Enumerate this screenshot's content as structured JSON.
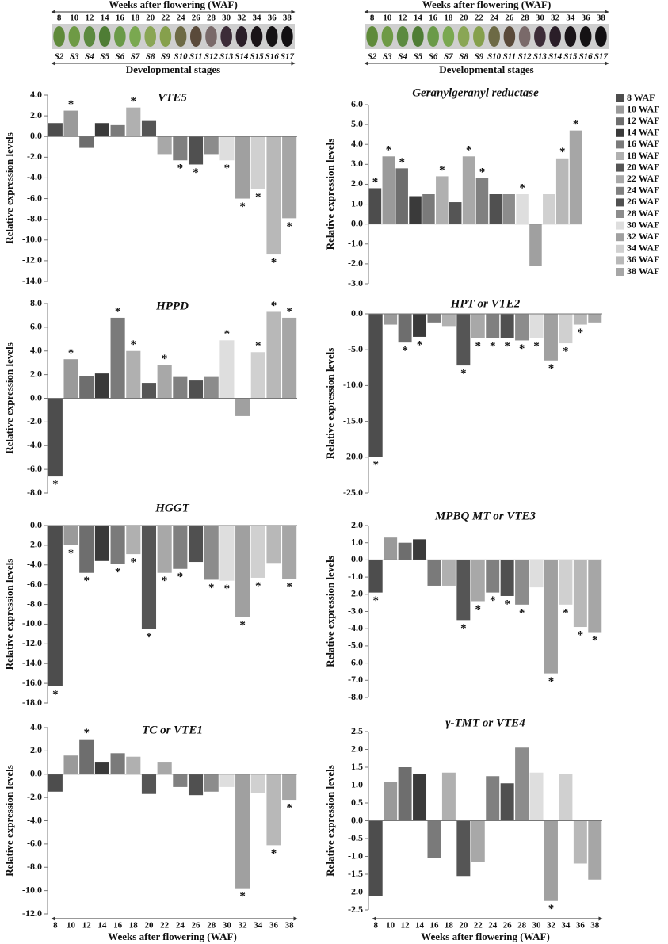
{
  "stage_strip": {
    "title": "Weeks after flowering (WAF)",
    "weeks": [
      8,
      10,
      12,
      14,
      16,
      18,
      20,
      22,
      24,
      26,
      28,
      30,
      32,
      34,
      36,
      38
    ],
    "stages": [
      "S2",
      "S3",
      "S4",
      "S5",
      "S6",
      "S7",
      "S8",
      "S9",
      "S10",
      "S11",
      "S12",
      "S13",
      "S14",
      "S15",
      "S16",
      "S17"
    ],
    "footer": "Developmental stages"
  },
  "chart_data": [
    {
      "type": "bar",
      "title": "VTE5",
      "y_label": "Relative expression levels",
      "values": [
        1.3,
        2.5,
        -1.1,
        1.3,
        1.1,
        2.8,
        1.5,
        -1.7,
        -2.3,
        -2.7,
        -1.7,
        -2.3,
        -6.0,
        -5.1,
        -11.4,
        -7.9
      ],
      "annotations": [
        null,
        "*",
        null,
        null,
        null,
        "*",
        null,
        null,
        "*",
        "*",
        null,
        "*",
        "*",
        "*",
        "*",
        "*"
      ],
      "ylim": [
        -14,
        4
      ],
      "yticks": [
        {
          "value": -14,
          "label": "-14.0"
        },
        {
          "value": -12,
          "label": "-12.0"
        },
        {
          "value": -10,
          "label": "-10.0"
        },
        {
          "value": -8,
          "label": "-8.0"
        },
        {
          "value": -6,
          "label": "-6.0"
        },
        {
          "value": -4,
          "label": "-4.0"
        },
        {
          "value": -2,
          "label": "-2.0"
        },
        {
          "value": 0,
          "label": "0.0"
        },
        {
          "value": 2,
          "label": "2.0"
        },
        {
          "value": 4,
          "label": "4.0"
        }
      ]
    },
    {
      "type": "bar",
      "title": "Geranylgeranyl reductase",
      "y_label": "Relative expression levels",
      "values": [
        1.8,
        3.4,
        2.8,
        1.4,
        1.5,
        2.4,
        1.1,
        3.4,
        2.3,
        1.5,
        1.5,
        1.5,
        -2.1,
        1.5,
        3.3,
        4.7
      ],
      "annotations": [
        "*",
        "*",
        "*",
        null,
        null,
        "*",
        null,
        "*",
        "*",
        null,
        null,
        "*",
        null,
        null,
        "*",
        "*"
      ],
      "ylim": [
        -3,
        6
      ],
      "yticks": [
        {
          "value": -3,
          "label": "-3.0"
        },
        {
          "value": -2,
          "label": "-2.0"
        },
        {
          "value": -1,
          "label": "-1.0"
        },
        {
          "value": 0,
          "label": "0.0"
        },
        {
          "value": 1,
          "label": "1.0"
        },
        {
          "value": 2,
          "label": "2.0"
        },
        {
          "value": 3,
          "label": "3.0"
        },
        {
          "value": 4,
          "label": "4.0"
        },
        {
          "value": 5,
          "label": "5.0"
        },
        {
          "value": 6,
          "label": "6.0"
        }
      ],
      "legend": {
        "labels": [
          "8 WAF",
          "10 WAF",
          "12 WAF",
          "14 WAF",
          "16 WAF",
          "18 WAF",
          "20 WAF",
          "22 WAF",
          "24 WAF",
          "26 WAF",
          "28 WAF",
          "30 WAF",
          "32 WAF",
          "34 WAF",
          "36 WAF",
          "38 WAF"
        ],
        "colors": [
          "#4d4d4d",
          "#9a9a9a",
          "#6e6e6e",
          "#3a3a3a",
          "#7a7a7a",
          "#b0b0b0",
          "#555555",
          "#a8a8a8",
          "#808080",
          "#505050",
          "#8c8c8c",
          "#dedede",
          "#a0a0a0",
          "#d0d0d0",
          "#b8b8b8",
          "#a6a6a6"
        ]
      }
    },
    {
      "type": "bar",
      "title": "HPPD",
      "y_label": "Relative expression levels",
      "values": [
        -6.6,
        3.3,
        1.9,
        2.1,
        6.8,
        4.0,
        1.3,
        2.8,
        1.8,
        1.5,
        1.8,
        4.9,
        -1.5,
        3.9,
        7.3,
        6.8
      ],
      "annotations": [
        "*",
        "*",
        null,
        null,
        "*",
        "*",
        null,
        "*",
        null,
        null,
        null,
        "*",
        null,
        "*",
        "*",
        "*"
      ],
      "ylim": [
        -8,
        8
      ],
      "yticks": [
        {
          "value": -8,
          "label": "-8.0"
        },
        {
          "value": -6,
          "label": "-6.0"
        },
        {
          "value": -4,
          "label": "-4.0"
        },
        {
          "value": -2,
          "label": "-2.0"
        },
        {
          "value": 0,
          "label": "0.0"
        },
        {
          "value": 2,
          "label": "2.0"
        },
        {
          "value": 4,
          "label": "4.0"
        },
        {
          "value": 6,
          "label": "6.0"
        },
        {
          "value": 8,
          "label": "8.0"
        }
      ]
    },
    {
      "type": "bar",
      "title": "HPT or VTE2",
      "y_label": "Relative expression levels",
      "values": [
        -20.0,
        -1.5,
        -4.0,
        -3.2,
        -1.2,
        -1.7,
        -7.2,
        -3.4,
        -3.4,
        -3.4,
        -3.7,
        -3.4,
        -6.5,
        -4.1,
        -1.5,
        -1.2
      ],
      "annotations": [
        "*",
        null,
        "*",
        "*",
        null,
        null,
        "*",
        "*",
        "*",
        "*",
        "*",
        "*",
        "*",
        "*",
        "*",
        null
      ],
      "ylim": [
        -25,
        0
      ],
      "yticks": [
        {
          "value": -25,
          "label": "-25.0"
        },
        {
          "value": -20,
          "label": "-20.0"
        },
        {
          "value": -15,
          "label": "-15.0"
        },
        {
          "value": -10,
          "label": "-10.0"
        },
        {
          "value": -5,
          "label": "-5.0"
        },
        {
          "value": 0,
          "label": "0.0"
        }
      ]
    },
    {
      "type": "bar",
      "title": "HGGT",
      "y_label": "Relative expression levels",
      "values": [
        -16.3,
        -2.0,
        -4.8,
        -3.6,
        -3.9,
        -2.9,
        -10.5,
        -4.8,
        -4.4,
        -3.7,
        -5.5,
        -5.6,
        -9.3,
        -5.3,
        -3.8,
        -5.4
      ],
      "annotations": [
        "*",
        "*",
        "*",
        null,
        "*",
        "*",
        "*",
        "*",
        "*",
        null,
        "*",
        "*",
        "*",
        "*",
        null,
        "*"
      ],
      "ylim": [
        -18,
        0
      ],
      "yticks": [
        {
          "value": -18,
          "label": "-18.0"
        },
        {
          "value": -16,
          "label": "-16.0"
        },
        {
          "value": -14,
          "label": "-14.0"
        },
        {
          "value": -12,
          "label": "-12.0"
        },
        {
          "value": -10,
          "label": "-10.0"
        },
        {
          "value": -8,
          "label": "-8.0"
        },
        {
          "value": -6,
          "label": "-6.0"
        },
        {
          "value": -4,
          "label": "-4.0"
        },
        {
          "value": -2,
          "label": "-2.0"
        },
        {
          "value": 0,
          "label": "0.0"
        }
      ]
    },
    {
      "type": "bar",
      "title": "MPBQ MT or VTE3",
      "y_label": "Relative expression levels",
      "values": [
        -1.9,
        1.3,
        1.0,
        1.2,
        -1.5,
        -1.5,
        -3.5,
        -2.4,
        -1.9,
        -2.1,
        -2.6,
        -1.6,
        -6.6,
        -2.6,
        -3.9,
        -4.2
      ],
      "annotations": [
        "*",
        null,
        null,
        null,
        null,
        null,
        "*",
        "*",
        "*",
        "*",
        "*",
        null,
        "*",
        "*",
        "*",
        "*"
      ],
      "ylim": [
        -8,
        2
      ],
      "yticks": [
        {
          "value": -8,
          "label": "-8.0"
        },
        {
          "value": -7,
          "label": "-7.0"
        },
        {
          "value": -6,
          "label": "-6.0"
        },
        {
          "value": -5,
          "label": "-5.0"
        },
        {
          "value": -4,
          "label": "-4.0"
        },
        {
          "value": -3,
          "label": "-3.0"
        },
        {
          "value": -2,
          "label": "-2.0"
        },
        {
          "value": -1,
          "label": "-1.0"
        },
        {
          "value": 0,
          "label": "0.0"
        },
        {
          "value": 1,
          "label": "1.0"
        },
        {
          "value": 2,
          "label": "2.0"
        }
      ]
    },
    {
      "type": "bar",
      "title": "TC or VTE1",
      "y_label": "Relative expression levels",
      "x_label": "Weeks after flowering (WAF)",
      "categories": [
        "8",
        "10",
        "12",
        "14",
        "16",
        "18",
        "20",
        "22",
        "24",
        "26",
        "28",
        "30",
        "32",
        "34",
        "36",
        "38"
      ],
      "values": [
        -1.5,
        1.6,
        3.0,
        1.0,
        1.8,
        1.5,
        -1.7,
        1.0,
        -1.1,
        -1.8,
        -1.5,
        -1.1,
        -9.8,
        -1.6,
        -6.1,
        -2.2
      ],
      "annotations": [
        null,
        null,
        "*",
        null,
        null,
        null,
        null,
        null,
        null,
        null,
        null,
        null,
        "*",
        null,
        "*",
        "*"
      ],
      "ylim": [
        -12,
        4
      ],
      "yticks": [
        {
          "value": -12,
          "label": "-12.0"
        },
        {
          "value": -10,
          "label": "-10.0"
        },
        {
          "value": -8,
          "label": "-8.0"
        },
        {
          "value": -6,
          "label": "-6.0"
        },
        {
          "value": -4,
          "label": "-4.0"
        },
        {
          "value": -2,
          "label": "-2.0"
        },
        {
          "value": 0,
          "label": "0.0"
        },
        {
          "value": 2,
          "label": "2.0"
        },
        {
          "value": 4,
          "label": "4.0"
        }
      ]
    },
    {
      "type": "bar",
      "title": "γ-TMT or VTE4",
      "y_label": "Relative expression levels",
      "x_label": "Weeks after flowering (WAF)",
      "categories": [
        "8",
        "10",
        "12",
        "14",
        "16",
        "18",
        "20",
        "22",
        "24",
        "26",
        "28",
        "30",
        "32",
        "34",
        "36",
        "38"
      ],
      "values": [
        -2.1,
        1.1,
        1.5,
        1.3,
        -1.05,
        1.35,
        -1.55,
        -1.15,
        1.25,
        1.05,
        2.05,
        1.35,
        -2.25,
        1.3,
        -1.2,
        -1.65
      ],
      "annotations": [
        null,
        null,
        null,
        null,
        null,
        null,
        null,
        null,
        null,
        null,
        null,
        null,
        "*",
        null,
        null,
        null
      ],
      "ylim": [
        -2.5,
        2.5
      ],
      "yticks": [
        {
          "value": -2.5,
          "label": "-2.5"
        },
        {
          "value": -2,
          "label": "-2.0"
        },
        {
          "value": -1.5,
          "label": "-1.5"
        },
        {
          "value": -1,
          "label": "-1.0"
        },
        {
          "value": -0.5,
          "label": "-0.5"
        },
        {
          "value": 0,
          "label": "0.0"
        },
        {
          "value": 0.5,
          "label": "0.5"
        },
        {
          "value": 1,
          "label": "1.0"
        },
        {
          "value": 1.5,
          "label": "1.5"
        },
        {
          "value": 2,
          "label": "2.0"
        },
        {
          "value": 2.5,
          "label": "2.5"
        }
      ]
    }
  ]
}
